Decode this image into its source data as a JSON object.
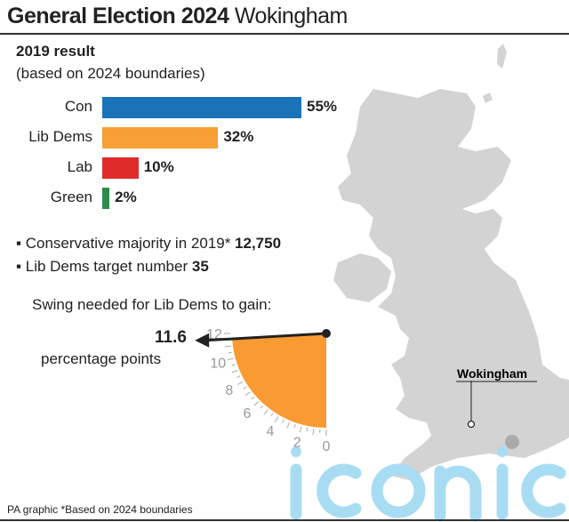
{
  "header": {
    "title_bold": "General Election 2024",
    "title_rest": "Wokingham"
  },
  "subtitle": "2019 result",
  "subtitle2": "(based on 2024 boundaries)",
  "chart_data": {
    "type": "bar",
    "title": "2019 result",
    "orientation": "horizontal",
    "categories": [
      "Con",
      "Lib Dems",
      "Lab",
      "Green"
    ],
    "values": [
      55,
      32,
      10,
      2
    ],
    "labels": [
      "55%",
      "32%",
      "10%",
      "2%"
    ],
    "colors": [
      "#1a73b8",
      "#f7a035",
      "#e02b2b",
      "#2e8b4a"
    ]
  },
  "facts": [
    {
      "text": "Conservative majority in 2019*",
      "value": "12,750"
    },
    {
      "text": "Lib Dems target number",
      "value": "35"
    }
  ],
  "swing": {
    "title": "Swing needed for Lib Dems to gain:",
    "value": 11.6,
    "value_label": "11.6",
    "unit": "percentage points",
    "max": 12,
    "ticks": [
      "0",
      "2",
      "4",
      "6",
      "8",
      "10",
      "12"
    ],
    "color": "#f99a32"
  },
  "map": {
    "label": "Wokingham"
  },
  "watermark": "iconic",
  "footer": "PA graphic *Based on 2024 boundaries"
}
